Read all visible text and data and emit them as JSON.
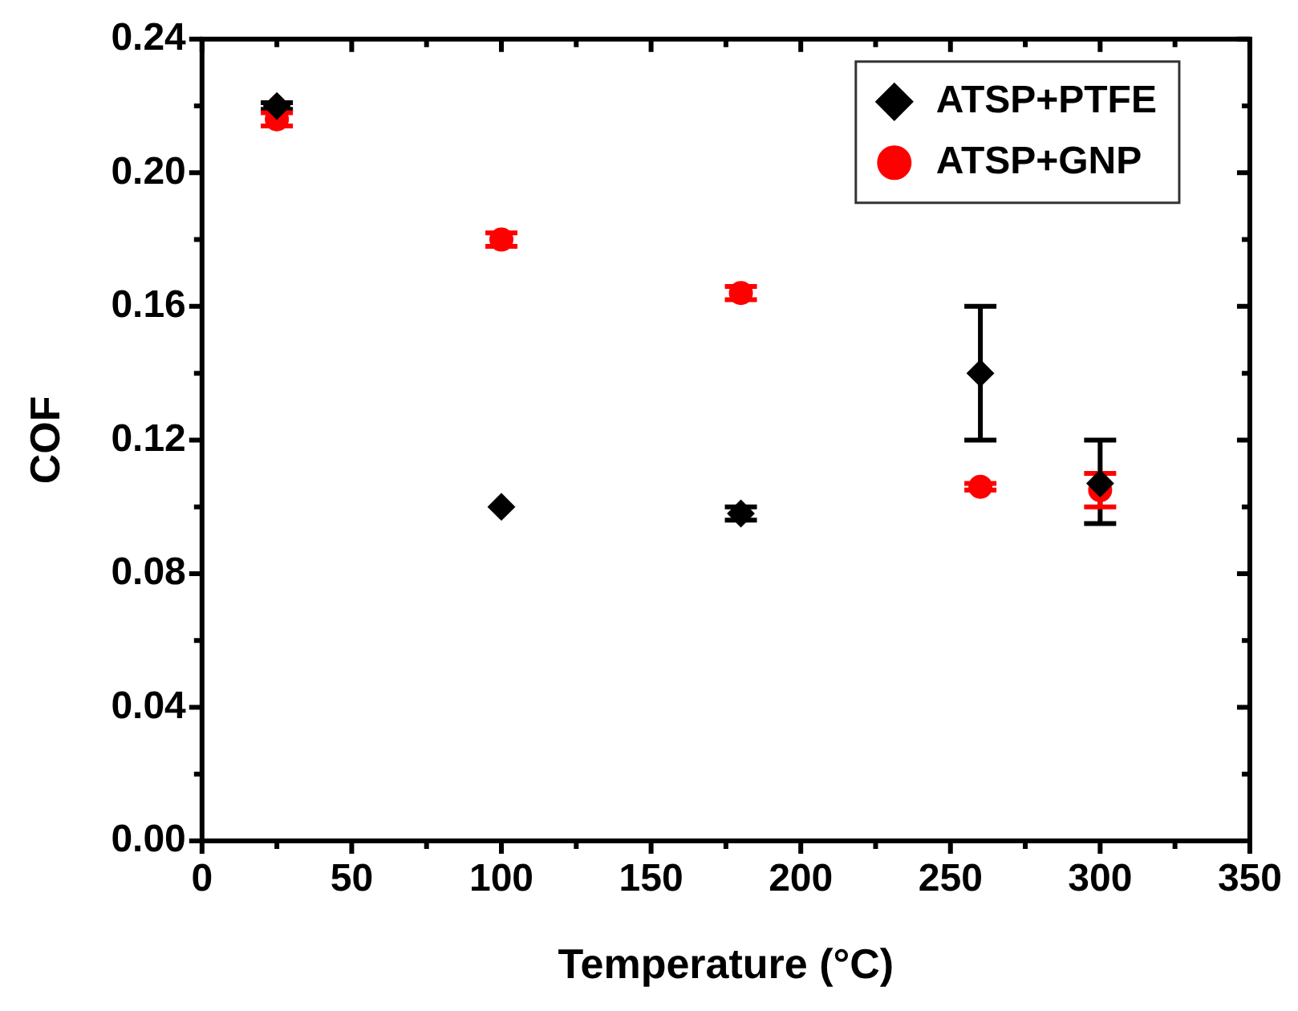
{
  "chart_data": {
    "type": "scatter",
    "xlabel": "Temperature (°C)",
    "ylabel": "COF",
    "x": [
      25,
      100,
      180,
      260,
      300
    ],
    "series": [
      {
        "name": "ATSP+PTFE",
        "color": "#000000",
        "marker": "diamond",
        "values": [
          0.22,
          0.1,
          0.098,
          0.14,
          0.107
        ],
        "errors": [
          0.001,
          null,
          0.002,
          0.02,
          [
            0.095,
            0.12
          ]
        ]
      },
      {
        "name": "ATSP+GNP",
        "color": "#ff0000",
        "marker": "circle",
        "values": [
          0.216,
          0.18,
          0.164,
          0.106,
          0.105
        ],
        "errors": [
          0.002,
          0.002,
          0.002,
          0.001,
          [
            0.1,
            0.11
          ]
        ]
      }
    ],
    "xlim": [
      0,
      350
    ],
    "xticks": [
      0,
      50,
      100,
      150,
      200,
      250,
      300,
      350
    ],
    "ylim": [
      0,
      0.24
    ],
    "yticks": [
      {
        "value": 0,
        "label": "0.00"
      },
      0.04,
      0.08,
      0.12,
      0.16,
      {
        "value": 0.2,
        "label": "0.20"
      },
      0.24
    ],
    "grid": false,
    "legend": "top right"
  }
}
